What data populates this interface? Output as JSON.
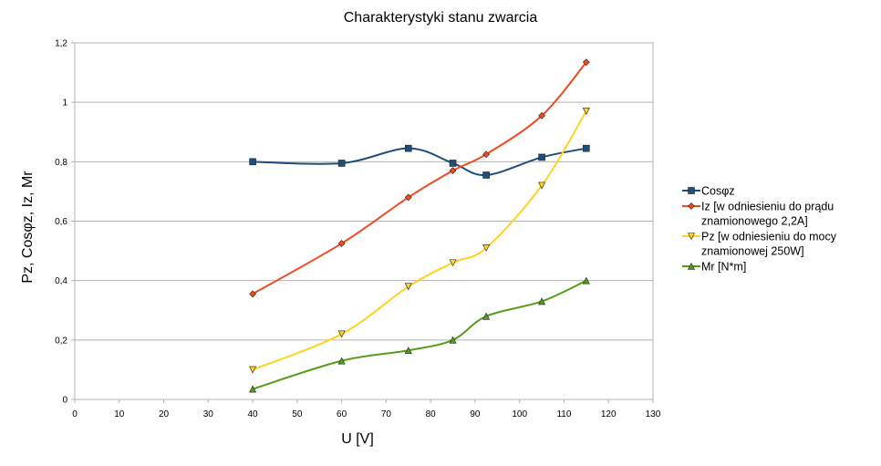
{
  "chart_data": {
    "type": "scatter",
    "title": "Charakterystyki stanu zwarcia",
    "xlabel": "U [V]",
    "ylabel": "Pz, Cosφz, Iz, Mr",
    "xlim": [
      0,
      130
    ],
    "ylim": [
      0,
      1.2
    ],
    "x_ticks": [
      "0",
      "10",
      "20",
      "30",
      "40",
      "50",
      "60",
      "70",
      "80",
      "90",
      "100",
      "110",
      "120",
      "130"
    ],
    "y_ticks": [
      "0",
      "0,2",
      "0,4",
      "0,6",
      "0,8",
      "1",
      "1,2"
    ],
    "grid": "horizontal",
    "legend_position": "right",
    "smoothed_lines": true,
    "series": [
      {
        "name": "Cosφz",
        "lines": [
          "Cosφz"
        ],
        "color": "#1f4e79",
        "marker": "square",
        "x": [
          40,
          60,
          75,
          85,
          92.5,
          105,
          115
        ],
        "y": [
          0.8,
          0.795,
          0.845,
          0.795,
          0.755,
          0.815,
          0.845
        ]
      },
      {
        "name": "Iz [w odniesieniu do prądu znamionowego 2,2A]",
        "lines": [
          "Iz [w odniesieniu do prądu",
          "znamionowego 2,2A]"
        ],
        "color": "#f04a22",
        "marker": "diamond",
        "x": [
          40,
          60,
          75,
          85,
          92.5,
          105,
          115
        ],
        "y": [
          0.355,
          0.525,
          0.68,
          0.77,
          0.825,
          0.955,
          1.135
        ]
      },
      {
        "name": "Pz [w odniesieniu do mocy znamionowej 250W]",
        "lines": [
          "Pz [w odniesieniu do mocy",
          "znamionowej 250W]"
        ],
        "color": "#ffd320",
        "marker": "triangle-down",
        "x": [
          40,
          60,
          75,
          85,
          92.5,
          105,
          115
        ],
        "y": [
          0.1,
          0.22,
          0.38,
          0.46,
          0.51,
          0.72,
          0.97
        ]
      },
      {
        "name": "Mr [N*m]",
        "lines": [
          "Mr [N*m]"
        ],
        "color": "#579d1c",
        "marker": "triangle-up",
        "x": [
          40,
          60,
          75,
          85,
          92.5,
          105,
          115
        ],
        "y": [
          0.035,
          0.13,
          0.165,
          0.2,
          0.28,
          0.33,
          0.4
        ]
      }
    ]
  }
}
